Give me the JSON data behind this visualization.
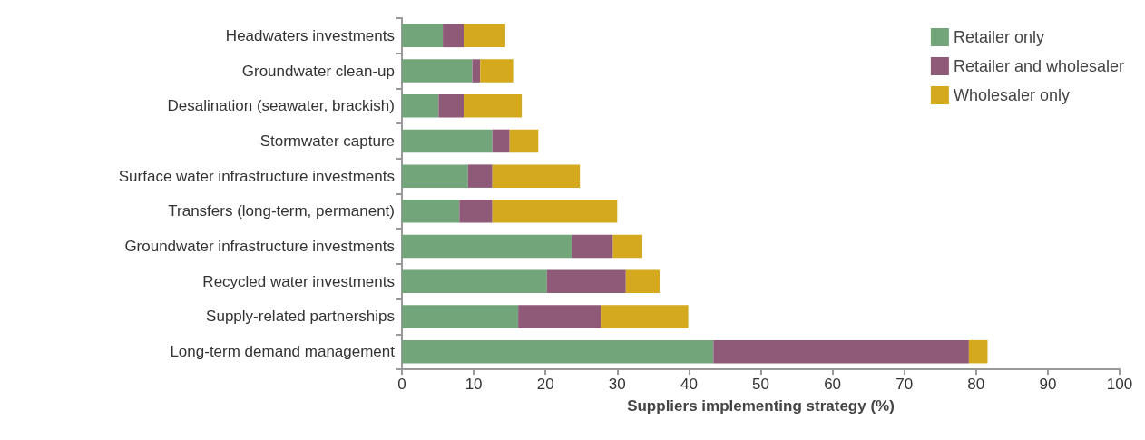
{
  "chart_data": {
    "type": "bar",
    "orientation": "horizontal",
    "stacked": true,
    "xlabel": "Suppliers implementing strategy (%)",
    "categories": [
      "Headwaters investments",
      "Groundwater clean-up",
      "Desalination (seawater, brackish)",
      "Stormwater capture",
      "Surface water infrastructure investments",
      "Transfers (long-term, permanent)",
      "Groundwater infrastructure investments",
      "Recycled water investments",
      "Supply-related partnerships",
      "Long-term demand management"
    ],
    "series": [
      {
        "name": "Retailer only",
        "color": "#72a57a",
        "values": [
          5.7,
          9.8,
          5.1,
          12.6,
          9.2,
          8.0,
          23.7,
          20.2,
          16.2,
          43.4
        ]
      },
      {
        "name": "Retailer and wholesaler",
        "color": "#8e5a78",
        "values": [
          2.9,
          1.1,
          3.5,
          2.4,
          3.4,
          4.6,
          5.7,
          11.0,
          11.5,
          35.6
        ]
      },
      {
        "name": "Wholesaler only",
        "color": "#d4a91e",
        "values": [
          5.8,
          4.6,
          8.1,
          4.0,
          12.2,
          17.4,
          4.1,
          4.7,
          12.2,
          2.6
        ]
      }
    ],
    "xlim": [
      0,
      100
    ],
    "xticks": [
      0,
      10,
      20,
      30,
      40,
      50,
      60,
      70,
      80,
      90,
      100
    ],
    "grid": false,
    "legend": "top right"
  }
}
